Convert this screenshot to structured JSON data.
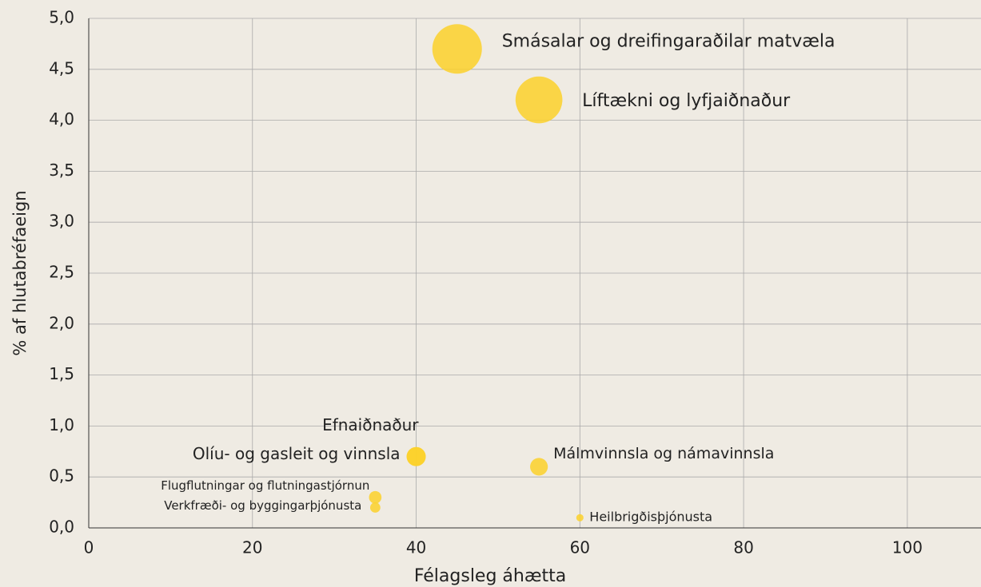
{
  "chart_data": {
    "type": "bubble",
    "xlabel": "Félagsleg áhætta",
    "ylabel": "% af hlutabréfaeign",
    "labels": [
      "Smásalar og dreifingaraðilar matvæla",
      "Líftækni og lyfjaiðnaður",
      "Efnaiðnaður",
      "Olíu- og gasleit og vinnsla",
      "Málmvinnsla og námavinnsla",
      "Flugflutningar og flutningastjórnun",
      "Verkfræði- og byggingarþjónusta",
      "Heilbrigðisþjónusta"
    ],
    "x": [
      45,
      55,
      40,
      40,
      55,
      35,
      35,
      60
    ],
    "values": [
      4.7,
      4.2,
      0.7,
      0.7,
      0.6,
      0.3,
      0.2,
      0.1
    ],
    "sizes": [
      4.7,
      4.2,
      0.7,
      0.7,
      0.6,
      0.3,
      0.2,
      0.1
    ],
    "color": "#fcd12a",
    "xlim": [
      0,
      109
    ],
    "ylim": [
      0,
      5
    ],
    "xticks": [
      0,
      20,
      40,
      60,
      80,
      100
    ],
    "yticks": [
      {
        "value": 0,
        "label": "0,0"
      },
      {
        "value": 0.5,
        "label": "0,5"
      },
      {
        "value": 1,
        "label": "1,0"
      },
      {
        "value": 1.5,
        "label": "1,5"
      },
      {
        "value": 2,
        "label": "2,0"
      },
      {
        "value": 2.5,
        "label": "2,5"
      },
      {
        "value": 3,
        "label": "3,0"
      },
      {
        "value": 3.5,
        "label": "3,5"
      },
      {
        "value": 4,
        "label": "4,0"
      },
      {
        "value": 4.5,
        "label": "4,5"
      },
      {
        "value": 5,
        "label": "5,0"
      }
    ],
    "grid": true
  }
}
